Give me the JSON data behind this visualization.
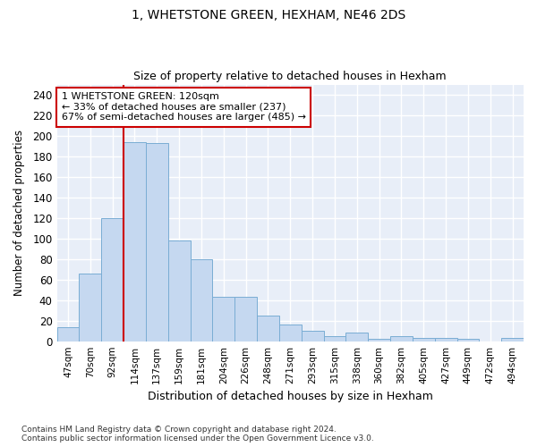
{
  "title": "1, WHETSTONE GREEN, HEXHAM, NE46 2DS",
  "subtitle": "Size of property relative to detached houses in Hexham",
  "xlabel": "Distribution of detached houses by size in Hexham",
  "ylabel": "Number of detached properties",
  "bar_color": "#c5d8f0",
  "bar_edge_color": "#7aadd4",
  "background_color": "#e8eef8",
  "fig_background_color": "#ffffff",
  "grid_color": "#ffffff",
  "vline_color": "#cc0000",
  "vline_x_index": 3,
  "annotation_text": "1 WHETSTONE GREEN: 120sqm\n← 33% of detached houses are smaller (237)\n67% of semi-detached houses are larger (485) →",
  "annotation_box_color": "#ffffff",
  "annotation_box_edge_color": "#cc0000",
  "categories": [
    "47sqm",
    "70sqm",
    "92sqm",
    "114sqm",
    "137sqm",
    "159sqm",
    "181sqm",
    "204sqm",
    "226sqm",
    "248sqm",
    "271sqm",
    "293sqm",
    "315sqm",
    "338sqm",
    "360sqm",
    "382sqm",
    "405sqm",
    "427sqm",
    "449sqm",
    "472sqm",
    "494sqm"
  ],
  "values": [
    14,
    66,
    120,
    194,
    193,
    98,
    80,
    43,
    43,
    25,
    16,
    10,
    5,
    8,
    2,
    5,
    3,
    3,
    2,
    0,
    3
  ],
  "ylim": [
    0,
    250
  ],
  "yticks": [
    0,
    20,
    40,
    60,
    80,
    100,
    120,
    140,
    160,
    180,
    200,
    220,
    240
  ],
  "footer_text": "Contains HM Land Registry data © Crown copyright and database right 2024.\nContains public sector information licensed under the Open Government Licence v3.0.",
  "figsize": [
    6.0,
    5.0
  ],
  "dpi": 100
}
